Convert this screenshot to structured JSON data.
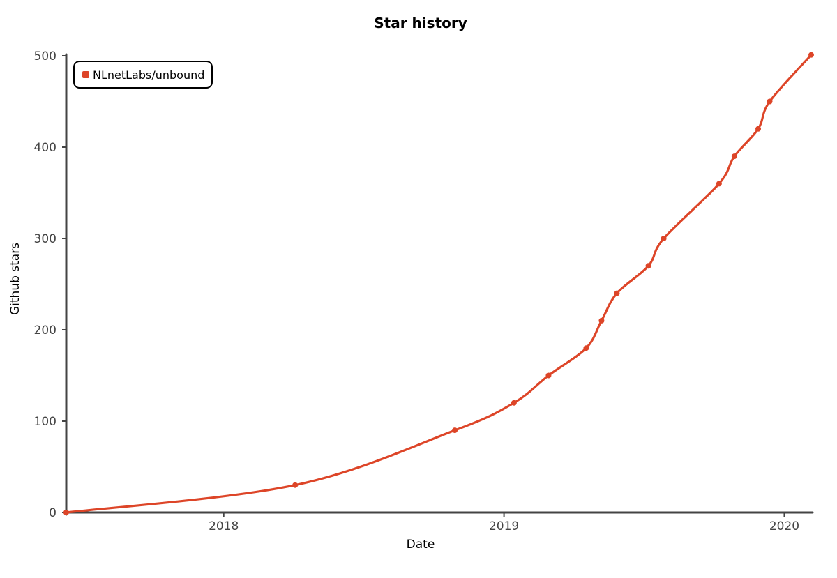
{
  "chart_data": {
    "type": "line",
    "title": "Star history",
    "xlabel": "Date",
    "ylabel": "Github stars",
    "x_axis": {
      "kind": "date",
      "range": [
        "2017-06-10",
        "2020-02-05"
      ],
      "ticks": [
        {
          "value": "2018-01-01",
          "label": "2018"
        },
        {
          "value": "2019-01-01",
          "label": "2019"
        },
        {
          "value": "2020-01-01",
          "label": "2020"
        }
      ]
    },
    "y_axis": {
      "range": [
        0,
        500
      ],
      "ticks": [
        0,
        100,
        200,
        300,
        400,
        500
      ]
    },
    "grid": false,
    "legend": {
      "position": "top-left"
    },
    "series": [
      {
        "name": "NLnetLabs/unbound",
        "color": "#dd4528",
        "points": [
          {
            "x": "2017-06-10",
            "y": 0
          },
          {
            "x": "2018-04-04",
            "y": 30
          },
          {
            "x": "2018-10-29",
            "y": 90
          },
          {
            "x": "2019-01-14",
            "y": 120
          },
          {
            "x": "2019-02-28",
            "y": 150
          },
          {
            "x": "2019-04-18",
            "y": 180
          },
          {
            "x": "2019-05-08",
            "y": 210
          },
          {
            "x": "2019-05-28",
            "y": 240
          },
          {
            "x": "2019-07-08",
            "y": 270
          },
          {
            "x": "2019-07-28",
            "y": 300
          },
          {
            "x": "2019-10-08",
            "y": 360
          },
          {
            "x": "2019-10-28",
            "y": 390
          },
          {
            "x": "2019-11-28",
            "y": 420
          },
          {
            "x": "2019-12-13",
            "y": 450
          },
          {
            "x": "2020-02-05",
            "y": 501
          }
        ]
      }
    ]
  }
}
